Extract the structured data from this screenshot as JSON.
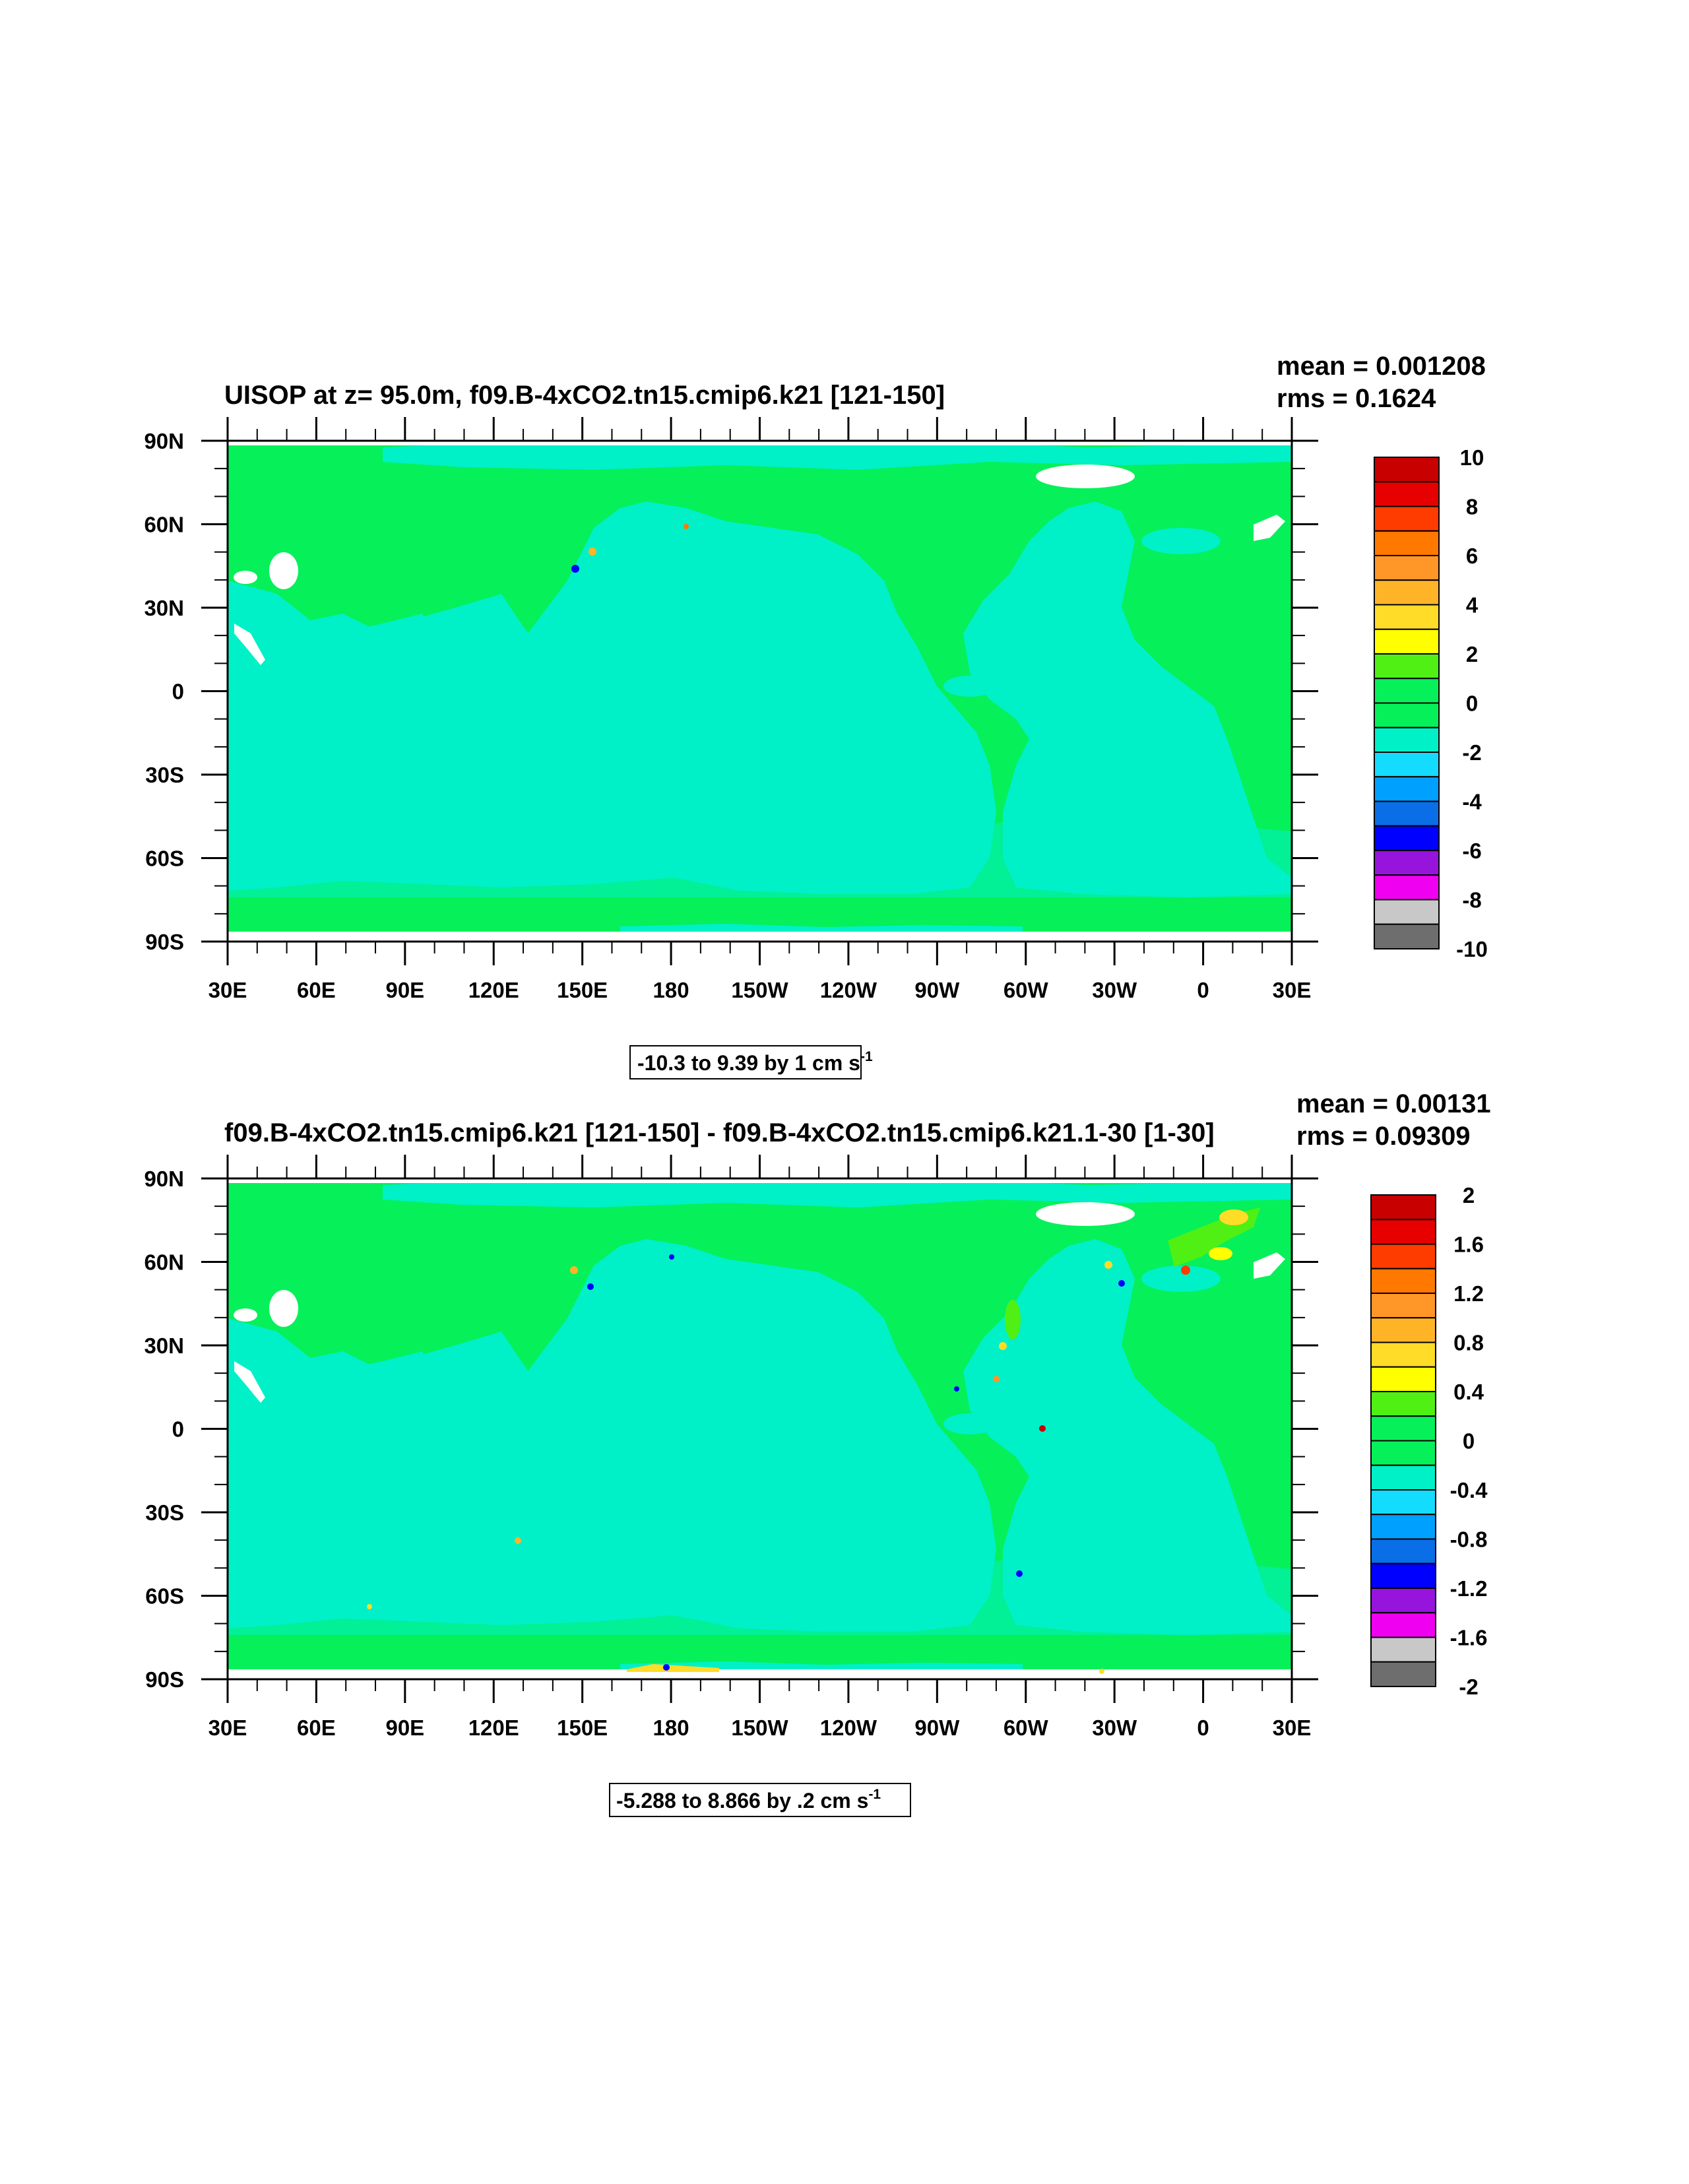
{
  "colors": {
    "ocean": "#00f0c8",
    "land": "#06f05a",
    "missing": "#ffffff",
    "frame": "#000000",
    "scale": [
      "#6e6e6e",
      "#c8c8c8",
      "#f000f0",
      "#9614dc",
      "#0000ff",
      "#0a6ee6",
      "#00a0ff",
      "#14dcff",
      "#00f0c8",
      "#06f05a",
      "#50f014",
      "#ffff00",
      "#ffdc28",
      "#ffb428",
      "#ff9628",
      "#ff7800",
      "#ff3c00",
      "#e60000",
      "#c80000"
    ]
  },
  "chart_data": [
    {
      "type": "heatmap",
      "title": "UISOP at z=  95.0m, f09.B-4xCO2.tn15.cmip6.k21 [121-150]",
      "mean_text": "mean = 0.001208",
      "rms_text": "rms = 0.1624",
      "x_tick_labels": [
        "30E",
        "60E",
        "90E",
        "120E",
        "150E",
        "180",
        "150W",
        "120W",
        "90W",
        "60W",
        "30W",
        "0",
        "30E"
      ],
      "y_tick_labels": [
        "90N",
        "60N",
        "30N",
        "0",
        "30S",
        "60S",
        "90S"
      ],
      "xlim": [
        30,
        390
      ],
      "ylim": [
        -90,
        90
      ],
      "colorbar_levels": [
        -10,
        -9,
        -8,
        -7,
        -6,
        -5,
        -4,
        -3,
        -2,
        -1,
        0,
        1,
        2,
        3,
        4,
        5,
        6,
        7,
        8,
        9,
        10
      ],
      "colorbar_labels": [
        "10",
        "8",
        "6",
        "4",
        "2",
        "0",
        "-2",
        "-4",
        "-6",
        "-8",
        "-10"
      ],
      "range_text": "-10.3 to 9.39 by 1 cm s",
      "range_sup": "-1"
    },
    {
      "type": "heatmap",
      "title": "f09.B-4xCO2.tn15.cmip6.k21 [121-150] - f09.B-4xCO2.tn15.cmip6.k21.1-30 [1-30]",
      "mean_text": "mean = 0.00131",
      "rms_text": "rms = 0.09309",
      "x_tick_labels": [
        "30E",
        "60E",
        "90E",
        "120E",
        "150E",
        "180",
        "150W",
        "120W",
        "90W",
        "60W",
        "30W",
        "0",
        "30E"
      ],
      "y_tick_labels": [
        "90N",
        "60N",
        "30N",
        "0",
        "30S",
        "60S",
        "90S"
      ],
      "xlim": [
        30,
        390
      ],
      "ylim": [
        -90,
        90
      ],
      "colorbar_levels": [
        -2,
        -1.8,
        -1.6,
        -1.4,
        -1.2,
        -1,
        -0.8,
        -0.6,
        -0.4,
        -0.2,
        0,
        0.2,
        0.4,
        0.6,
        0.8,
        1,
        1.2,
        1.4,
        1.6,
        1.8,
        2
      ],
      "colorbar_labels": [
        "2",
        "1.6",
        "1.2",
        "0.8",
        "0.4",
        "0",
        "-0.4",
        "-0.8",
        "-1.2",
        "-1.6",
        "-2"
      ],
      "range_text": "-5.288 to 8.866 by .2 cm s",
      "range_sup": "-1"
    }
  ]
}
